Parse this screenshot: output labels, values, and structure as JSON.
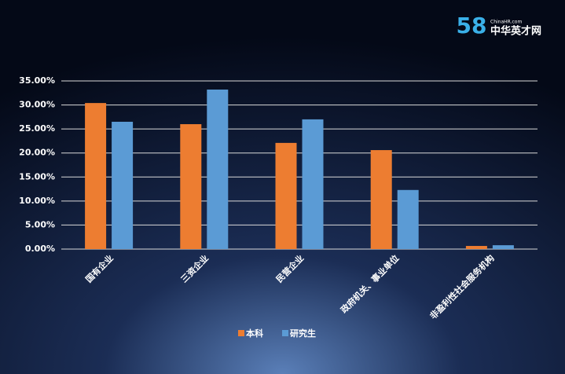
{
  "logo": {
    "number": "58",
    "site": "ChinaHR.com",
    "name": "中华英才网"
  },
  "chart_data": {
    "type": "bar",
    "categories": [
      "国有企业",
      "三资企业",
      "民营企业",
      "政府机关、事业单位",
      "非盈利性社会服务机构"
    ],
    "series": [
      {
        "name": "本科",
        "color": "#ed7d31",
        "values": [
          30.4,
          26.0,
          22.1,
          20.6,
          0.65
        ]
      },
      {
        "name": "研究生",
        "color": "#5b9bd5",
        "values": [
          26.5,
          33.2,
          27.0,
          12.3,
          0.8
        ]
      }
    ],
    "ylim": [
      0,
      35
    ],
    "yticks": [
      {
        "value": 0,
        "label": "0.00%"
      },
      {
        "value": 5,
        "label": "5.00%"
      },
      {
        "value": 10,
        "label": "10.00%"
      },
      {
        "value": 15,
        "label": "15.00%"
      },
      {
        "value": 20,
        "label": "20.00%"
      },
      {
        "value": 25,
        "label": "25.00%"
      },
      {
        "value": 30,
        "label": "30.00%"
      },
      {
        "value": 35,
        "label": "35.00%"
      }
    ],
    "grid": true,
    "legend": "bottom"
  }
}
